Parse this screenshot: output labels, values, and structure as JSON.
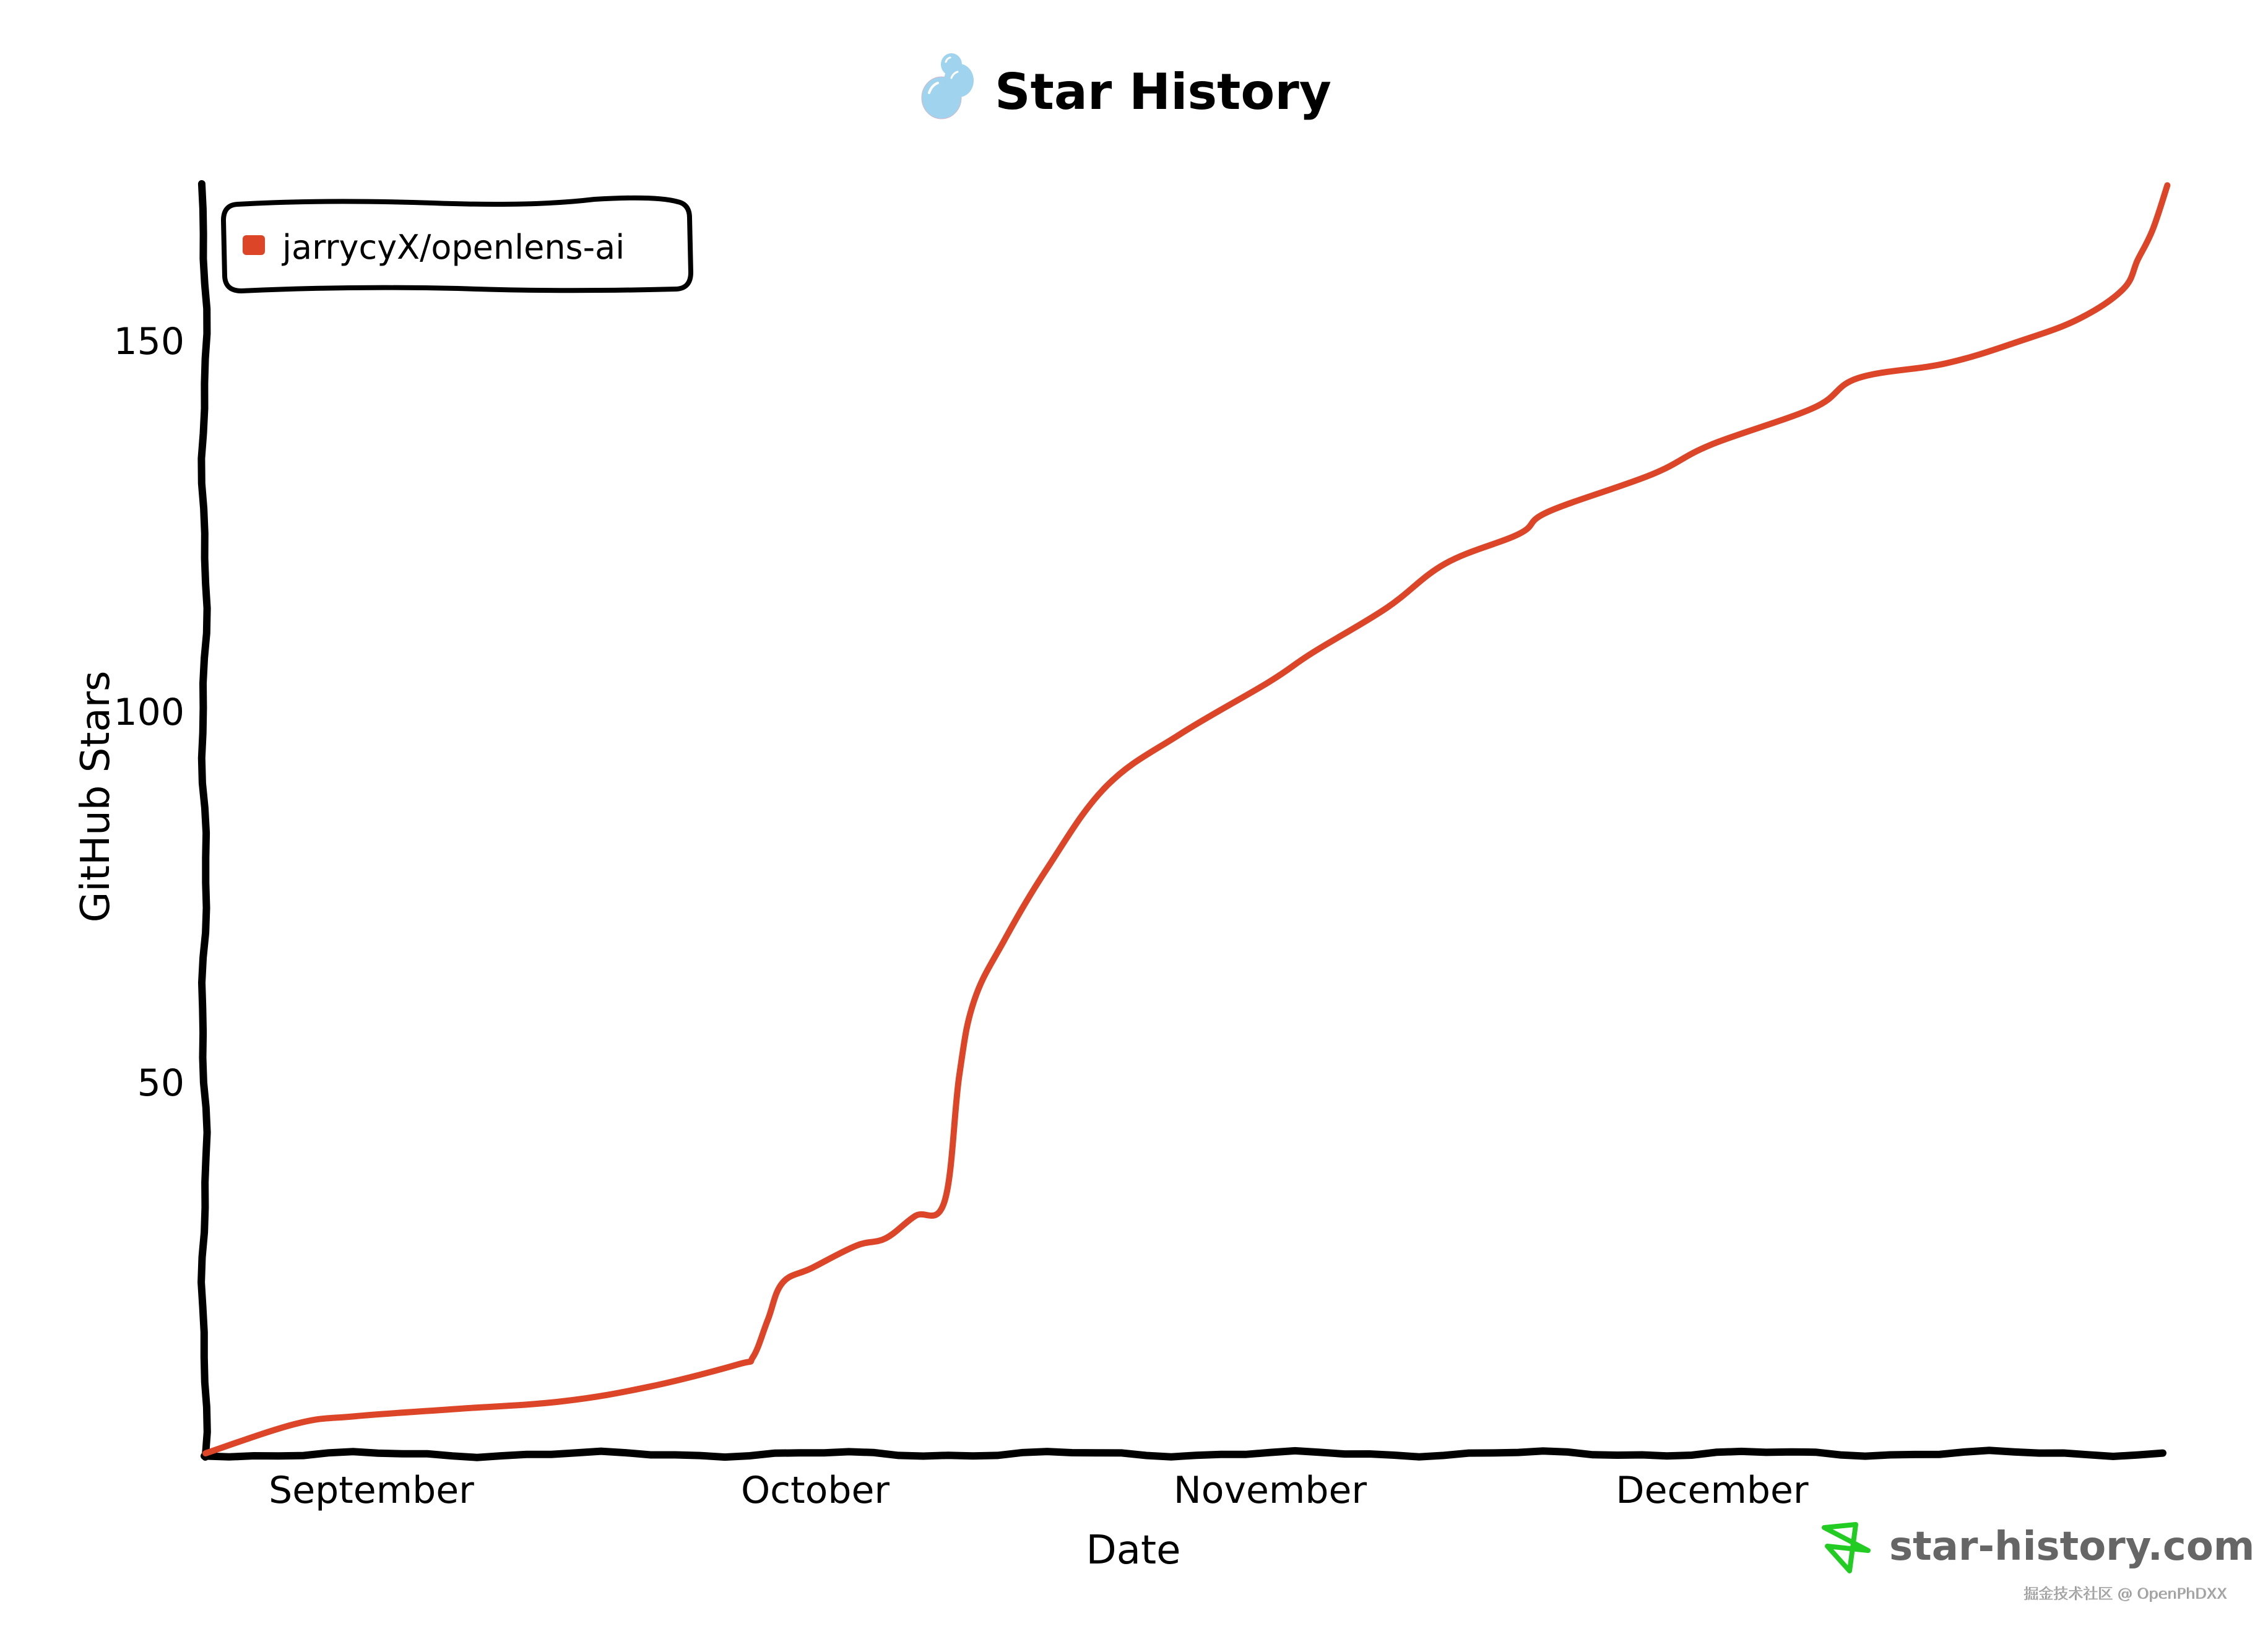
{
  "header": {
    "title": "Star History",
    "logo_icon": "bubbles-icon"
  },
  "axes": {
    "x_label": "Date",
    "y_label": "GitHub Stars",
    "x_ticks": [
      {
        "label": "September",
        "date": "Sep 1"
      },
      {
        "label": "October",
        "date": "Oct 1"
      },
      {
        "label": "November",
        "date": "Nov 1"
      },
      {
        "label": "December",
        "date": "Dec 1"
      }
    ],
    "y_ticks": [
      {
        "label": "50",
        "value": 50
      },
      {
        "label": "100",
        "value": 100
      },
      {
        "label": "150",
        "value": 150
      }
    ]
  },
  "legend": {
    "items": [
      {
        "label": "jarrycyX/openlens-ai",
        "color": "#dd4528"
      }
    ]
  },
  "branding": {
    "site": "star-history.com",
    "icon": "green-star-icon",
    "icon_color": "#22cc22",
    "text_color": "#666666"
  },
  "watermark": {
    "text": "掘金技术社区 @ OpenPhDXX"
  },
  "colors": {
    "series": "#dd4528",
    "axis": "#000000",
    "background": "#ffffff",
    "bubble": "#9fd3ee"
  },
  "chart_data": {
    "type": "line",
    "title": "Star History",
    "xlabel": "Date",
    "ylabel": "GitHub Stars",
    "x_tick_labels": [
      "September",
      "October",
      "November",
      "December"
    ],
    "y_tick_labels": [
      "50",
      "100",
      "150"
    ],
    "ylim": [
      0,
      172
    ],
    "xlim": [
      "Aug 21",
      "Jan 1"
    ],
    "grid": false,
    "legend_position": "top-left",
    "series": [
      {
        "name": "jarrycyX/openlens-ai",
        "color": "#dd4528",
        "points": [
          {
            "date": "Aug 21",
            "stars": 0
          },
          {
            "date": "Aug 27",
            "stars": 4
          },
          {
            "date": "Aug 31",
            "stars": 5
          },
          {
            "date": "Sep 7",
            "stars": 6
          },
          {
            "date": "Sep 14",
            "stars": 7
          },
          {
            "date": "Sep 20",
            "stars": 9
          },
          {
            "date": "Sep 26",
            "stars": 12
          },
          {
            "date": "Sep 27",
            "stars": 13
          },
          {
            "date": "Sep 28",
            "stars": 18
          },
          {
            "date": "Sep 29",
            "stars": 23
          },
          {
            "date": "Oct 1",
            "stars": 25
          },
          {
            "date": "Oct 4",
            "stars": 28
          },
          {
            "date": "Oct 6",
            "stars": 29
          },
          {
            "date": "Oct 8",
            "stars": 32
          },
          {
            "date": "Oct 10",
            "stars": 34
          },
          {
            "date": "Oct 11",
            "stars": 51
          },
          {
            "date": "Oct 12",
            "stars": 61
          },
          {
            "date": "Oct 14",
            "stars": 69
          },
          {
            "date": "Oct 17",
            "stars": 79
          },
          {
            "date": "Oct 21",
            "stars": 90
          },
          {
            "date": "Oct 26",
            "stars": 97
          },
          {
            "date": "Nov 1",
            "stars": 104
          },
          {
            "date": "Nov 4",
            "stars": 108
          },
          {
            "date": "Nov 9",
            "stars": 114
          },
          {
            "date": "Nov 13",
            "stars": 120
          },
          {
            "date": "Nov 18",
            "stars": 124
          },
          {
            "date": "Nov 20",
            "stars": 127
          },
          {
            "date": "Nov 27",
            "stars": 132
          },
          {
            "date": "Dec 1",
            "stars": 136
          },
          {
            "date": "Dec 8",
            "stars": 141
          },
          {
            "date": "Dec 11",
            "stars": 145
          },
          {
            "date": "Dec 17",
            "stars": 147
          },
          {
            "date": "Dec 22",
            "stars": 150
          },
          {
            "date": "Dec 26",
            "stars": 153
          },
          {
            "date": "Dec 29",
            "stars": 157
          },
          {
            "date": "Dec 30",
            "stars": 161
          },
          {
            "date": "Dec 31",
            "stars": 165
          },
          {
            "date": "Jan 1",
            "stars": 171
          }
        ]
      }
    ]
  }
}
